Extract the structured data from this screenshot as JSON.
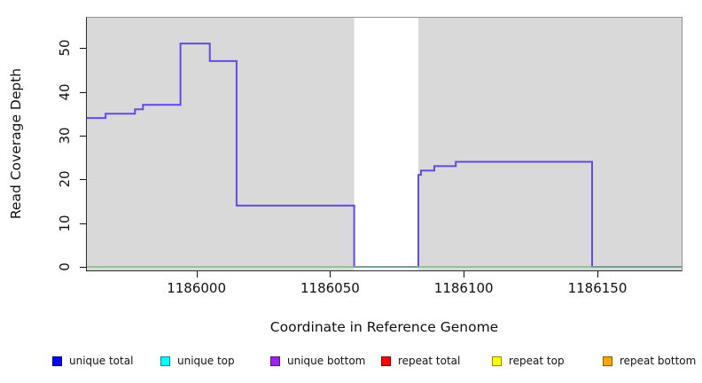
{
  "chart_data": {
    "type": "line",
    "subtype": "step-coverage",
    "title": "",
    "xlabel": "Coordinate in Reference Genome",
    "ylabel": "Read Coverage Depth",
    "xlim": [
      1185959,
      1186181.5
    ],
    "ylim": [
      -0.8,
      56.9
    ],
    "x_ticks": [
      1186000,
      1186050,
      1186100,
      1186150
    ],
    "y_ticks": [
      0,
      10,
      20,
      30,
      40,
      50
    ],
    "grid": "off",
    "plot_background": "#d9d9d9",
    "gap_region": {
      "x0": 1186059,
      "x1": 1186083,
      "color": "#ffffff"
    },
    "series": [
      {
        "name": "unique coverage step line",
        "type": "step",
        "color": "#6349e8",
        "points": [
          [
            1185959,
            34
          ],
          [
            1185966,
            35
          ],
          [
            1185977,
            36
          ],
          [
            1185980,
            37
          ],
          [
            1185994,
            51
          ],
          [
            1186005,
            47
          ],
          [
            1186015,
            14
          ],
          [
            1186059,
            0
          ],
          [
            1186083,
            21
          ],
          [
            1186084,
            22
          ],
          [
            1186089,
            23
          ],
          [
            1186097,
            24
          ],
          [
            1186148,
            0
          ],
          [
            1186181.5,
            0
          ]
        ]
      },
      {
        "name": "zero baseline",
        "type": "hline",
        "y": 0,
        "color": "#7cbe7c"
      }
    ],
    "legend_position": "bottom",
    "legend": [
      {
        "label": "unique total",
        "color": "#0000ff"
      },
      {
        "label": "unique top",
        "color": "#00ffff"
      },
      {
        "label": "unique bottom",
        "color": "#a020f0"
      },
      {
        "label": "repeat total",
        "color": "#ff0000"
      },
      {
        "label": "repeat top",
        "color": "#ffff00"
      },
      {
        "label": "repeat bottom",
        "color": "#ffa500"
      }
    ]
  }
}
